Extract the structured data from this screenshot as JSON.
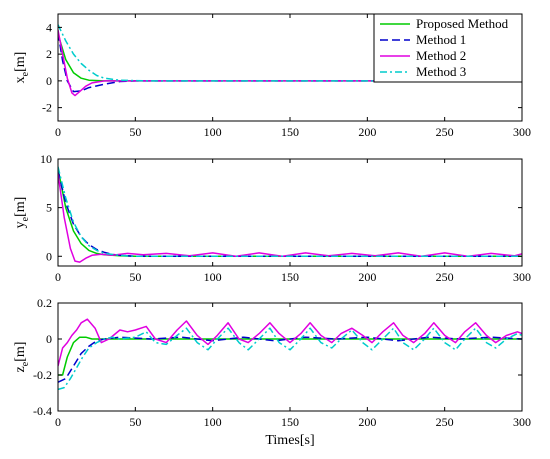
{
  "chart_data": [
    {
      "type": "line",
      "ylabel": {
        "main": "x",
        "sub": "e",
        "unit": "[m]"
      },
      "xlim": [
        0,
        300
      ],
      "ylim": [
        -3,
        5
      ],
      "xticks": [
        0,
        50,
        100,
        150,
        200,
        250,
        300
      ],
      "xtick_labels": [
        "0",
        "50",
        "100",
        "150",
        "200",
        "250",
        "300"
      ],
      "yticks": [
        -2,
        0,
        2,
        4
      ],
      "ytick_labels": [
        "-2",
        "0",
        "2",
        "4"
      ],
      "legend": {
        "position": "top-right"
      },
      "series": [
        {
          "name": "Proposed Method",
          "color": "#00cc00",
          "dash": "solid",
          "x": [
            0,
            5,
            10,
            15,
            20,
            30,
            40,
            60,
            80,
            100,
            150,
            200,
            250,
            300
          ],
          "y": [
            3.5,
            1.6,
            0.6,
            0.2,
            0.05,
            0.0,
            0.0,
            0.0,
            0.0,
            0.0,
            0.0,
            0.0,
            0.0,
            0.0
          ]
        },
        {
          "name": "Method 1",
          "color": "#0000cc",
          "dash": "dashed",
          "x": [
            0,
            3,
            6,
            10,
            15,
            20,
            30,
            40,
            50,
            60,
            80,
            100,
            150,
            200,
            250,
            300
          ],
          "y": [
            3.6,
            1.5,
            0.0,
            -0.8,
            -0.75,
            -0.5,
            -0.25,
            -0.05,
            0.0,
            0.0,
            0.0,
            0.0,
            0.0,
            0.0,
            0.0,
            0.0
          ]
        },
        {
          "name": "Method 2",
          "color": "#e000e0",
          "dash": "solid",
          "x": [
            0,
            3,
            6,
            9,
            11,
            14,
            18,
            22,
            30,
            40,
            60,
            80,
            100,
            150,
            200,
            250,
            300
          ],
          "y": [
            3.8,
            2.0,
            0.2,
            -0.9,
            -1.1,
            -0.8,
            -0.4,
            -0.15,
            0.0,
            0.0,
            0.0,
            0.0,
            0.0,
            0.0,
            0.0,
            0.0,
            0.0
          ]
        },
        {
          "name": "Method 3",
          "color": "#00cccc",
          "dash": "dashdot",
          "x": [
            0,
            5,
            10,
            15,
            20,
            25,
            30,
            40,
            60,
            80,
            100,
            150,
            200,
            250,
            300
          ],
          "y": [
            4.2,
            3.0,
            2.0,
            1.3,
            0.8,
            0.4,
            0.2,
            0.05,
            0.0,
            0.0,
            0.0,
            0.0,
            0.0,
            0.0,
            0.0
          ]
        }
      ]
    },
    {
      "type": "line",
      "ylabel": {
        "main": "y",
        "sub": "e",
        "unit": "[m]"
      },
      "xlim": [
        0,
        300
      ],
      "ylim": [
        -1,
        10
      ],
      "xticks": [
        0,
        50,
        100,
        150,
        200,
        250,
        300
      ],
      "xtick_labels": [
        "0",
        "50",
        "100",
        "150",
        "200",
        "250",
        "300"
      ],
      "yticks": [
        0,
        5,
        10
      ],
      "ytick_labels": [
        "0",
        "5",
        "10"
      ],
      "series": [
        {
          "name": "Proposed Method",
          "color": "#00cc00",
          "dash": "solid",
          "x": [
            0,
            5,
            10,
            15,
            20,
            25,
            30,
            40,
            50,
            75,
            100,
            150,
            200,
            250,
            300
          ],
          "y": [
            9.0,
            5.0,
            2.6,
            1.3,
            0.6,
            0.3,
            0.15,
            0.05,
            0.0,
            0.0,
            0.0,
            0.0,
            0.0,
            0.0,
            0.0
          ]
        },
        {
          "name": "Method 1",
          "color": "#0000cc",
          "dash": "dashed",
          "x": [
            0,
            5,
            10,
            15,
            20,
            25,
            30,
            35,
            40,
            50,
            75,
            100,
            150,
            200,
            250,
            300
          ],
          "y": [
            8.8,
            5.5,
            3.3,
            2.0,
            1.2,
            0.7,
            0.4,
            0.2,
            0.1,
            0.0,
            0.0,
            0.0,
            0.0,
            0.0,
            0.0,
            0.0
          ]
        },
        {
          "name": "Method 2",
          "color": "#e000e0",
          "dash": "solid",
          "x": [
            0,
            4,
            8,
            11,
            14,
            18,
            22,
            28,
            35,
            45,
            55,
            70,
            85,
            100,
            115,
            130,
            145,
            160,
            175,
            190,
            205,
            220,
            235,
            250,
            265,
            280,
            295,
            300
          ],
          "y": [
            8.5,
            4.0,
            0.8,
            -0.5,
            -0.6,
            -0.2,
            0.1,
            0.2,
            0.1,
            0.3,
            0.15,
            0.3,
            0.05,
            0.35,
            0.0,
            0.35,
            0.0,
            0.35,
            0.05,
            0.3,
            0.05,
            0.35,
            0.0,
            0.35,
            0.0,
            0.3,
            0.05,
            0.25
          ]
        },
        {
          "name": "Method 3",
          "color": "#00cccc",
          "dash": "dashdot",
          "x": [
            0,
            5,
            10,
            15,
            20,
            25,
            30,
            40,
            50,
            75,
            100,
            150,
            200,
            250,
            300
          ],
          "y": [
            9.2,
            6.0,
            3.5,
            2.0,
            1.1,
            0.6,
            0.3,
            0.1,
            0.0,
            0.0,
            0.0,
            0.0,
            0.0,
            0.0,
            0.0
          ]
        }
      ]
    },
    {
      "type": "line",
      "ylabel": {
        "main": "z",
        "sub": "e",
        "unit": "[m]"
      },
      "xlabel": "Times[s]",
      "xlim": [
        0,
        300
      ],
      "ylim": [
        -0.4,
        0.2
      ],
      "xticks": [
        0,
        50,
        100,
        150,
        200,
        250,
        300
      ],
      "xtick_labels": [
        "0",
        "50",
        "100",
        "150",
        "200",
        "250",
        "300"
      ],
      "yticks": [
        -0.4,
        -0.2,
        0,
        0.2
      ],
      "ytick_labels": [
        "-0.4",
        "-0.2",
        "0",
        "0.2"
      ],
      "series": [
        {
          "name": "Proposed Method",
          "color": "#00cc00",
          "dash": "solid",
          "x": [
            0,
            3,
            6,
            10,
            14,
            18,
            22,
            30,
            40,
            60,
            100,
            150,
            200,
            250,
            300
          ],
          "y": [
            -0.2,
            -0.2,
            -0.1,
            -0.02,
            0.01,
            0.01,
            0.0,
            0.0,
            0.0,
            0.0,
            0.0,
            0.0,
            0.0,
            0.0,
            0.0
          ]
        },
        {
          "name": "Method 1",
          "color": "#0000cc",
          "dash": "dashed",
          "x": [
            0,
            5,
            10,
            15,
            20,
            25,
            30,
            40,
            60,
            80,
            100,
            120,
            140,
            160,
            180,
            200,
            220,
            240,
            260,
            280,
            300
          ],
          "y": [
            -0.24,
            -0.22,
            -0.15,
            -0.08,
            -0.04,
            -0.01,
            0.0,
            0.01,
            0.0,
            0.01,
            -0.01,
            0.01,
            -0.01,
            0.01,
            0.0,
            0.01,
            -0.01,
            0.01,
            0.0,
            0.01,
            0.0
          ]
        },
        {
          "name": "Method 2",
          "color": "#e000e0",
          "dash": "solid",
          "x": [
            0,
            3,
            6,
            9,
            12,
            15,
            19,
            24,
            28,
            33,
            40,
            45,
            50,
            57,
            63,
            70,
            77,
            83,
            90,
            97,
            103,
            110,
            117,
            123,
            130,
            137,
            143,
            150,
            157,
            163,
            170,
            177,
            183,
            190,
            197,
            203,
            210,
            217,
            223,
            230,
            237,
            243,
            250,
            257,
            263,
            270,
            277,
            283,
            290,
            297,
            300
          ],
          "y": [
            -0.15,
            -0.05,
            -0.02,
            0.02,
            0.05,
            0.09,
            0.11,
            0.06,
            -0.02,
            0.0,
            0.05,
            0.04,
            0.05,
            0.07,
            0.0,
            -0.02,
            0.05,
            0.1,
            0.02,
            -0.03,
            0.02,
            0.09,
            0.0,
            -0.02,
            0.03,
            0.09,
            0.03,
            -0.02,
            0.03,
            0.09,
            0.02,
            -0.02,
            0.03,
            0.06,
            0.02,
            -0.02,
            0.04,
            0.09,
            0.02,
            -0.02,
            0.03,
            0.09,
            0.02,
            -0.02,
            0.04,
            0.09,
            0.02,
            -0.02,
            0.02,
            0.04,
            0.03
          ]
        },
        {
          "name": "Method 3",
          "color": "#00cccc",
          "dash": "dashdot",
          "x": [
            0,
            4,
            8,
            12,
            16,
            20,
            25,
            30,
            35,
            40,
            50,
            57,
            63,
            70,
            77,
            83,
            90,
            97,
            103,
            110,
            117,
            123,
            130,
            137,
            143,
            150,
            157,
            163,
            170,
            177,
            183,
            190,
            197,
            203,
            210,
            217,
            223,
            230,
            237,
            243,
            250,
            257,
            263,
            270,
            277,
            283,
            290,
            297,
            300
          ],
          "y": [
            -0.28,
            -0.27,
            -0.22,
            -0.16,
            -0.1,
            -0.05,
            -0.02,
            0.0,
            0.01,
            0.0,
            0.01,
            0.04,
            -0.02,
            -0.03,
            0.02,
            0.06,
            -0.02,
            -0.06,
            0.0,
            0.06,
            -0.02,
            -0.06,
            0.0,
            0.06,
            -0.02,
            -0.06,
            0.0,
            0.06,
            -0.02,
            -0.05,
            0.0,
            0.05,
            -0.02,
            -0.06,
            0.0,
            0.06,
            -0.02,
            -0.06,
            0.0,
            0.06,
            -0.02,
            -0.06,
            0.0,
            0.06,
            -0.02,
            -0.05,
            0.0,
            0.03,
            0.02
          ]
        }
      ]
    }
  ]
}
